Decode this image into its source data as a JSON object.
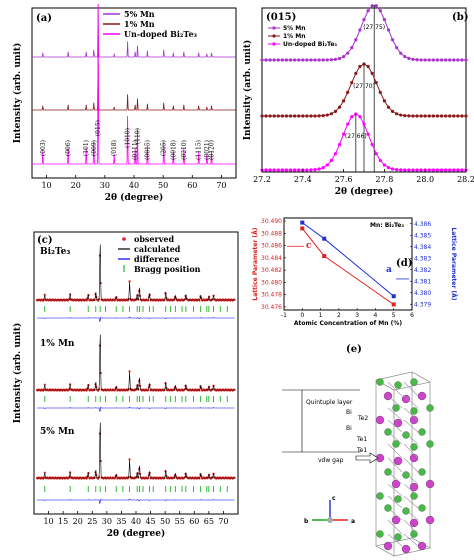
{
  "chart_data": [
    {
      "type": "line",
      "panel": "(a)",
      "xlabel": "2θ (degree)",
      "ylabel": "Intensity (arb. unit)",
      "xlim": [
        5,
        75
      ],
      "xticks": [
        "10",
        "20",
        "30",
        "40",
        "50",
        "60",
        "70"
      ],
      "legend_position": "top-center",
      "series": [
        {
          "name": "5% Mn",
          "color": "#aa33cc"
        },
        {
          "name": "1% Mn",
          "color": "#8b1a1a"
        },
        {
          "name": "Un-doped Bi₂Te₃",
          "color": "#ff00ff"
        }
      ],
      "peaks": [
        {
          "x": 8.7,
          "h": 0.08,
          "hkl": "(003)"
        },
        {
          "x": 17.4,
          "h": 0.1,
          "hkl": "(006)"
        },
        {
          "x": 23.6,
          "h": 0.1,
          "hkl": "(101)"
        },
        {
          "x": 26.2,
          "h": 0.14,
          "hkl": "(009)"
        },
        {
          "x": 27.7,
          "h": 1.0,
          "hkl": "(015)"
        },
        {
          "x": 33.2,
          "h": 0.06,
          "hkl": "(018)"
        },
        {
          "x": 37.8,
          "h": 0.3,
          "hkl": "(1010)"
        },
        {
          "x": 40.4,
          "h": 0.1,
          "hkl": "(0111)"
        },
        {
          "x": 41.2,
          "h": 0.22,
          "hkl": "(110)"
        },
        {
          "x": 44.6,
          "h": 0.12,
          "hkl": "(0015)"
        },
        {
          "x": 50.2,
          "h": 0.14,
          "hkl": "(205)"
        },
        {
          "x": 53.5,
          "h": 0.08,
          "hkl": "(0018)"
        },
        {
          "x": 57.1,
          "h": 0.1,
          "hkl": "(0210)"
        },
        {
          "x": 62.2,
          "h": 0.08,
          "hkl": "(1115)"
        },
        {
          "x": 65.0,
          "h": 0.06,
          "hkl": "(0021)"
        },
        {
          "x": 66.6,
          "h": 0.08,
          "hkl": "(0120)"
        }
      ]
    },
    {
      "type": "line",
      "panel": "(b)",
      "title": "(015)",
      "xlabel": "2θ (degree)",
      "ylabel": "Intensity (arb. unit)",
      "xlim": [
        27.2,
        28.2
      ],
      "xticks": [
        "27.2",
        "27.4",
        "27.6",
        "27.8",
        "28.0",
        "28.2"
      ],
      "legend_position": "top-left",
      "series": [
        {
          "name": "5% Mn",
          "color": "#aa33cc",
          "peak": 27.75,
          "label": "(27.75)"
        },
        {
          "name": "1% Mn",
          "color": "#8b1a1a",
          "peak": 27.7,
          "label": "(27.70)"
        },
        {
          "name": "Un-doped Bi₂Te₃",
          "color": "#ff00ff",
          "peak": 27.66,
          "label": "(27.66)"
        }
      ]
    },
    {
      "type": "line",
      "panel": "(c)",
      "xlabel": "2θ (degree)",
      "ylabel": "Intensity (arb. unit)",
      "xlim": [
        5,
        75
      ],
      "xticks": [
        "10",
        "15",
        "20",
        "25",
        "30",
        "35",
        "40",
        "45",
        "50",
        "55",
        "60",
        "65",
        "70"
      ],
      "legend_position": "top-right",
      "legend": [
        {
          "name": "observed",
          "color": "#e02020"
        },
        {
          "name": "calculated",
          "color": "#000000"
        },
        {
          "name": "difference",
          "color": "#0000ff"
        },
        {
          "name": "Bragg position",
          "color": "#00aa00"
        }
      ],
      "samples": [
        "Bi₂Te₃",
        "1% Mn",
        "5% Mn"
      ]
    },
    {
      "type": "line",
      "panel": "(d)",
      "annotation": "Mn: Bi₂Te₃",
      "xlabel": "Atomic Concentration of Mn (%)",
      "ylabel_left": "Lattice Parameter (Å)",
      "ylabel_right": "Lattice Parameter (Å)",
      "xlim": [
        -1,
        6
      ],
      "ylim_left": [
        30.4755,
        30.4905
      ],
      "ylim_right": [
        4.3785,
        4.3865
      ],
      "xticks": [
        "-1",
        "0",
        "1",
        "2",
        "3",
        "4",
        "5",
        "6"
      ],
      "yticks_left": [
        "30.476",
        "30.478",
        "30.480",
        "30.482",
        "30.484",
        "30.486",
        "30.488",
        "30.490"
      ],
      "yticks_right": [
        "4.379",
        "4.380",
        "4.381",
        "4.382",
        "4.383",
        "4.384",
        "4.385",
        "4.386"
      ],
      "series": [
        {
          "name": "c",
          "axis": "left",
          "color": "#e02020",
          "x": [
            0,
            1.2,
            5
          ],
          "values": [
            30.4888,
            30.4843,
            30.4764
          ]
        },
        {
          "name": "a",
          "axis": "right",
          "color": "#2030d0",
          "x": [
            0,
            1.2,
            5
          ],
          "values": [
            4.3861,
            4.3847,
            4.3797
          ]
        }
      ]
    }
  ],
  "panel_e": {
    "label": "(e)",
    "labels": [
      "Quintuple layer",
      "Te2",
      "Bi",
      "Te1",
      "Bi",
      "Te1",
      "vdw gap"
    ],
    "axes": [
      "c",
      "b",
      "a"
    ],
    "atom_colors": {
      "Bi": "#cc44cc",
      "Te": "#44bb44"
    }
  }
}
